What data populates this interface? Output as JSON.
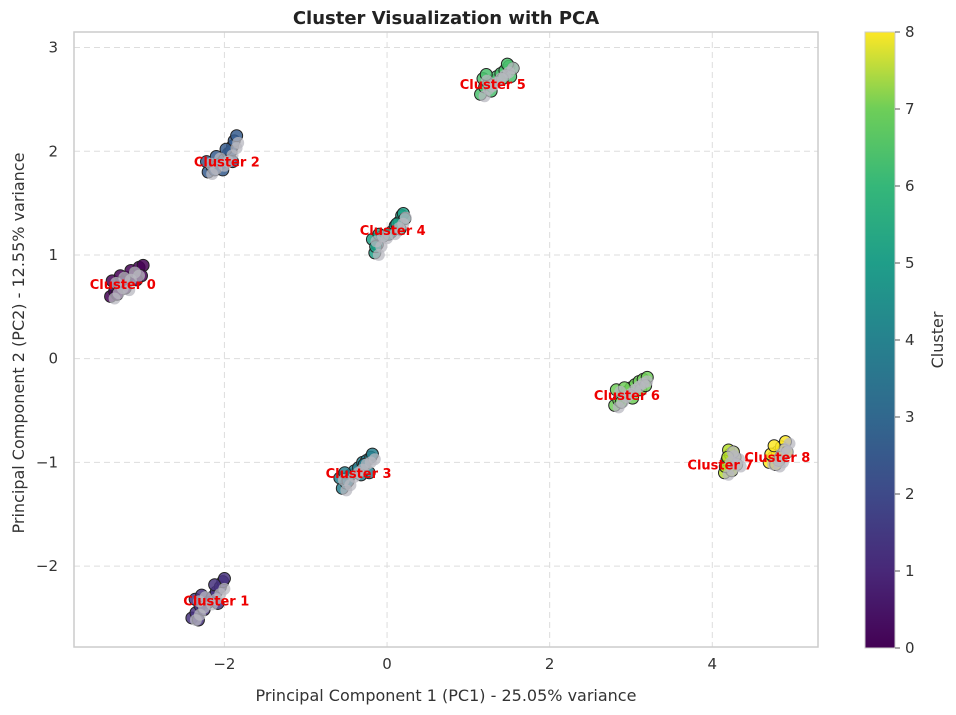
{
  "chart_data": {
    "type": "scatter",
    "title": "Cluster Visualization with PCA",
    "xlabel": "Principal Component 1 (PC1) - 25.05% variance",
    "ylabel": "Principal Component 2 (PC2) - 12.55% variance",
    "xlim": [
      -3.85,
      5.3
    ],
    "ylim": [
      -2.78,
      3.15
    ],
    "xticks": [
      -2,
      0,
      2,
      4
    ],
    "yticks": [
      -2,
      -1,
      0,
      1,
      2,
      3
    ],
    "grid": true,
    "colorbar": {
      "label": "Cluster",
      "min": 0,
      "max": 8,
      "ticks": [
        0,
        1,
        2,
        3,
        4,
        5,
        6,
        7,
        8
      ],
      "colormap": "viridis"
    },
    "clusters": [
      {
        "label": "Cluster 0",
        "id": 0,
        "color": "#440154",
        "label_pos": [
          -3.25,
          0.72
        ],
        "points": [
          [
            -3.4,
            0.6
          ],
          [
            -3.35,
            0.65
          ],
          [
            -3.3,
            0.7
          ],
          [
            -3.38,
            0.75
          ],
          [
            -3.28,
            0.8
          ],
          [
            -3.22,
            0.68
          ],
          [
            -3.2,
            0.78
          ],
          [
            -3.15,
            0.85
          ],
          [
            -3.1,
            0.82
          ],
          [
            -3.05,
            0.88
          ],
          [
            -3.0,
            0.9
          ],
          [
            -3.02,
            0.8
          ],
          [
            -3.08,
            0.76
          ],
          [
            -3.32,
            0.62
          ],
          [
            -3.26,
            0.74
          ]
        ]
      },
      {
        "label": "Cluster 1",
        "id": 1,
        "color": "#46327e",
        "label_pos": [
          -2.1,
          -2.33
        ],
        "points": [
          [
            -2.4,
            -2.5
          ],
          [
            -2.35,
            -2.45
          ],
          [
            -2.3,
            -2.38
          ],
          [
            -2.36,
            -2.32
          ],
          [
            -2.28,
            -2.28
          ],
          [
            -2.2,
            -2.35
          ],
          [
            -2.15,
            -2.3
          ],
          [
            -2.1,
            -2.25
          ],
          [
            -2.05,
            -2.2
          ],
          [
            -2.02,
            -2.15
          ],
          [
            -2.0,
            -2.12
          ],
          [
            -2.08,
            -2.36
          ],
          [
            -2.25,
            -2.42
          ],
          [
            -2.32,
            -2.52
          ],
          [
            -2.12,
            -2.18
          ]
        ]
      },
      {
        "label": "Cluster 2",
        "id": 2,
        "color": "#365c8d",
        "label_pos": [
          -1.97,
          1.9
        ],
        "points": [
          [
            -2.2,
            1.8
          ],
          [
            -2.15,
            1.85
          ],
          [
            -2.22,
            1.9
          ],
          [
            -2.1,
            1.95
          ],
          [
            -2.05,
            1.88
          ],
          [
            -2.0,
            1.92
          ],
          [
            -1.95,
            1.98
          ],
          [
            -1.9,
            2.05
          ],
          [
            -1.88,
            2.1
          ],
          [
            -1.85,
            2.15
          ],
          [
            -1.92,
            2.0
          ],
          [
            -2.02,
            1.82
          ],
          [
            -1.98,
            2.02
          ],
          [
            -2.12,
            1.82
          ],
          [
            -1.9,
            1.9
          ]
        ]
      },
      {
        "label": "Cluster 3",
        "id": 3,
        "color": "#277f8e",
        "label_pos": [
          -0.35,
          -1.1
        ],
        "points": [
          [
            -0.55,
            -1.25
          ],
          [
            -0.5,
            -1.2
          ],
          [
            -0.58,
            -1.15
          ],
          [
            -0.45,
            -1.12
          ],
          [
            -0.4,
            -1.08
          ],
          [
            -0.35,
            -1.05
          ],
          [
            -0.3,
            -1.0
          ],
          [
            -0.25,
            -0.98
          ],
          [
            -0.2,
            -0.95
          ],
          [
            -0.18,
            -0.92
          ],
          [
            -0.22,
            -1.1
          ],
          [
            -0.28,
            -1.02
          ],
          [
            -0.48,
            -1.18
          ],
          [
            -0.52,
            -1.1
          ],
          [
            -0.32,
            -1.12
          ]
        ]
      },
      {
        "label": "Cluster 4",
        "id": 4,
        "color": "#1fa187",
        "label_pos": [
          0.07,
          1.24
        ],
        "points": [
          [
            -0.15,
            1.02
          ],
          [
            -0.12,
            1.1
          ],
          [
            -0.18,
            1.15
          ],
          [
            -0.1,
            1.2
          ],
          [
            -0.05,
            1.18
          ],
          [
            0.05,
            1.22
          ],
          [
            0.1,
            1.28
          ],
          [
            0.15,
            1.32
          ],
          [
            0.18,
            1.38
          ],
          [
            0.2,
            1.4
          ],
          [
            0.22,
            1.35
          ],
          [
            0.16,
            1.25
          ],
          [
            0.02,
            1.2
          ],
          [
            -0.14,
            1.08
          ],
          [
            0.12,
            1.3
          ]
        ]
      },
      {
        "label": "Cluster 5",
        "id": 5,
        "color": "#4ac16d",
        "label_pos": [
          1.3,
          2.65
        ],
        "points": [
          [
            1.15,
            2.55
          ],
          [
            1.2,
            2.62
          ],
          [
            1.18,
            2.7
          ],
          [
            1.25,
            2.65
          ],
          [
            1.3,
            2.68
          ],
          [
            1.35,
            2.72
          ],
          [
            1.4,
            2.75
          ],
          [
            1.45,
            2.78
          ],
          [
            1.5,
            2.82
          ],
          [
            1.55,
            2.8
          ],
          [
            1.52,
            2.72
          ],
          [
            1.28,
            2.58
          ],
          [
            1.22,
            2.74
          ],
          [
            1.42,
            2.7
          ],
          [
            1.48,
            2.84
          ]
        ]
      },
      {
        "label": "Cluster 6",
        "id": 6,
        "color": "#6ece58",
        "label_pos": [
          2.95,
          -0.35
        ],
        "points": [
          [
            2.8,
            -0.45
          ],
          [
            2.85,
            -0.4
          ],
          [
            2.9,
            -0.35
          ],
          [
            2.82,
            -0.3
          ],
          [
            2.95,
            -0.32
          ],
          [
            3.0,
            -0.28
          ],
          [
            3.05,
            -0.25
          ],
          [
            3.1,
            -0.22
          ],
          [
            3.15,
            -0.2
          ],
          [
            3.2,
            -0.18
          ],
          [
            3.12,
            -0.3
          ],
          [
            2.88,
            -0.42
          ],
          [
            3.02,
            -0.38
          ],
          [
            3.18,
            -0.26
          ],
          [
            2.92,
            -0.28
          ]
        ]
      },
      {
        "label": "Cluster 7",
        "id": 7,
        "color": "#b5de2b",
        "label_pos": [
          4.1,
          -1.02
        ],
        "points": [
          [
            4.15,
            -1.1
          ],
          [
            4.2,
            -1.05
          ],
          [
            4.18,
            -0.98
          ],
          [
            4.25,
            -1.0
          ],
          [
            4.22,
            -0.92
          ],
          [
            4.28,
            -0.95
          ],
          [
            4.2,
            -0.88
          ],
          [
            4.3,
            -1.02
          ],
          [
            4.24,
            -1.08
          ],
          [
            4.16,
            -1.04
          ],
          [
            4.26,
            -0.9
          ],
          [
            4.19,
            -0.95
          ]
        ]
      },
      {
        "label": "Cluster 8",
        "id": 8,
        "color": "#fde725",
        "label_pos": [
          4.8,
          -0.95
        ],
        "points": [
          [
            4.7,
            -1.0
          ],
          [
            4.75,
            -0.95
          ],
          [
            4.8,
            -0.9
          ],
          [
            4.85,
            -0.85
          ],
          [
            4.9,
            -0.8
          ],
          [
            4.78,
            -1.02
          ],
          [
            4.82,
            -0.98
          ],
          [
            4.88,
            -0.88
          ],
          [
            4.72,
            -0.92
          ],
          [
            4.76,
            -0.84
          ],
          [
            4.92,
            -0.9
          ],
          [
            4.84,
            -0.95
          ]
        ]
      }
    ]
  }
}
